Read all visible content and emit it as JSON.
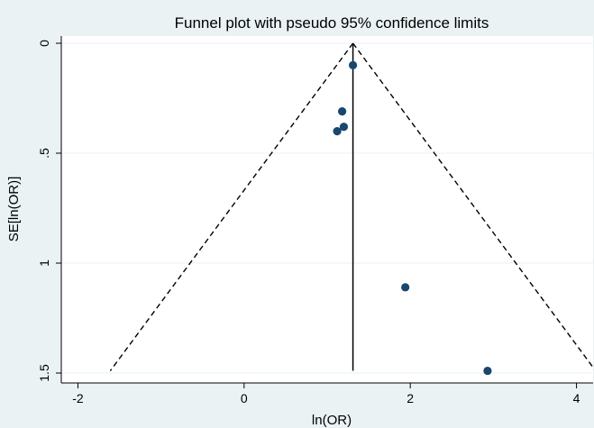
{
  "chart_data": {
    "type": "scatter",
    "title": "Funnel plot with pseudo 95% confidence limits",
    "xlabel": "ln(OR)",
    "ylabel": "SE[ln(OR)]",
    "xlim": [
      -2.2,
      4.2
    ],
    "ylim": [
      0,
      1.5
    ],
    "y_reversed": true,
    "grid": true,
    "x_ticks": [
      -2,
      0,
      2,
      4
    ],
    "x_tick_labels": [
      "-2",
      "0",
      "2",
      "4"
    ],
    "y_ticks": [
      0,
      0.5,
      1,
      1.5
    ],
    "y_tick_labels": [
      "0",
      ".5",
      "1",
      "1.5"
    ],
    "pooled_estimate": 1.31,
    "confidence_multiplier": 1.96,
    "points": [
      {
        "x": 1.31,
        "y": 0.1
      },
      {
        "x": 1.18,
        "y": 0.31
      },
      {
        "x": 1.2,
        "y": 0.38
      },
      {
        "x": 1.12,
        "y": 0.4
      },
      {
        "x": 1.94,
        "y": 1.11
      },
      {
        "x": 2.93,
        "y": 1.49
      }
    ],
    "colors": {
      "background": "#eaf2f3",
      "plot_area": "#ffffff",
      "marker": "#1a476f",
      "grid": "#eaf2f3",
      "lines": "#000000"
    }
  }
}
